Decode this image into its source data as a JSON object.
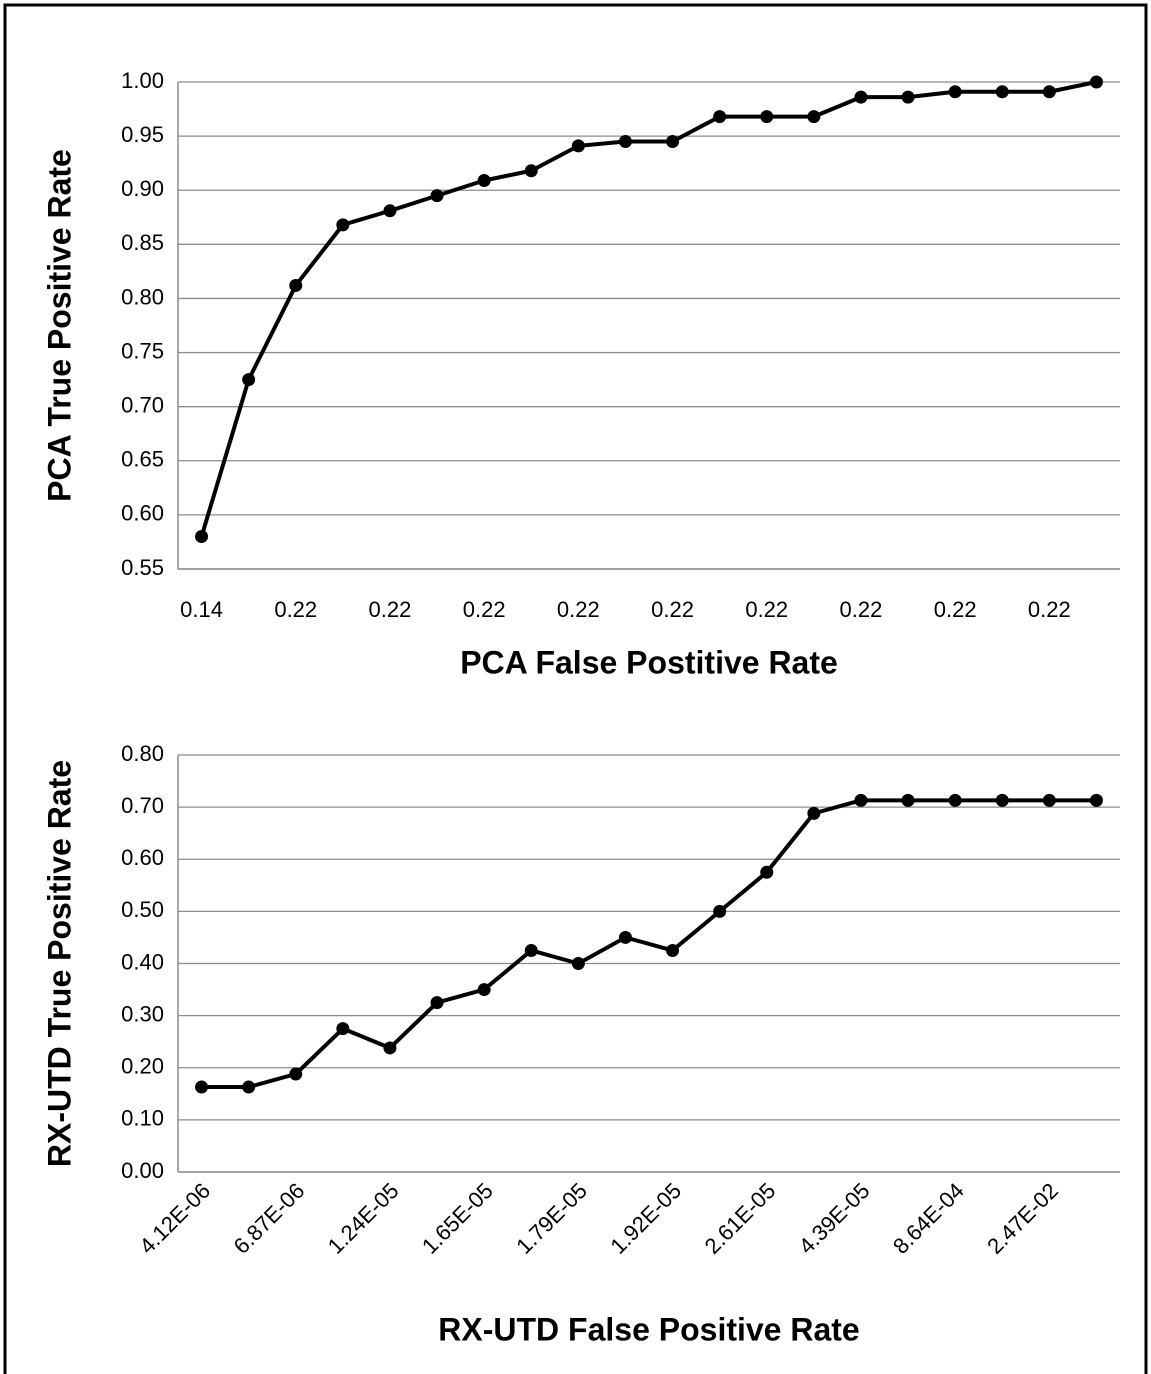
{
  "chart_data": [
    {
      "type": "line",
      "y_label": "PCA True Positive Rate",
      "x_label": "PCA False Postitive Rate",
      "categories": [
        "0.14",
        null,
        "0.22",
        null,
        "0.22",
        null,
        "0.22",
        null,
        "0.22",
        null,
        "0.22",
        null,
        "0.22",
        null,
        "0.22",
        null,
        "0.22",
        null,
        "0.22",
        null
      ],
      "series": [
        {
          "color": "#000000",
          "values": [
            0.58,
            0.725,
            0.812,
            0.868,
            0.881,
            0.895,
            0.909,
            0.918,
            0.941,
            0.945,
            0.945,
            0.968,
            0.968,
            0.968,
            0.986,
            0.986,
            0.991,
            0.991,
            0.991,
            1.0
          ]
        }
      ],
      "ylim": [
        0.55,
        1.0
      ],
      "yticks": [
        0.55,
        {
          "value": 0.6,
          "label": "0.60"
        },
        0.65,
        {
          "value": 0.7,
          "label": "0.70"
        },
        0.75,
        {
          "value": 0.8,
          "label": "0.80"
        },
        0.85,
        {
          "value": 0.9,
          "label": "0.90"
        },
        0.95,
        {
          "value": 1.0,
          "label": "1.00"
        }
      ],
      "grid": true
    },
    {
      "type": "line",
      "y_label": "RX-UTD True Positive Rate",
      "x_label": "RX-UTD False Positive Rate",
      "categories": [
        "4.12E-06",
        null,
        "6.87E-06",
        null,
        "1.24E-05",
        null,
        "1.65E-05",
        null,
        "1.79E-05",
        null,
        "1.92E-05",
        null,
        "2.61E-05",
        null,
        "4.39E-05",
        null,
        "8.64E-04",
        null,
        "2.47E-02",
        null
      ],
      "series": [
        {
          "color": "#000000",
          "values": [
            0.163,
            0.163,
            0.188,
            0.275,
            0.238,
            0.325,
            0.35,
            0.425,
            0.4,
            0.45,
            0.425,
            0.5,
            0.575,
            0.688,
            0.713,
            0.713,
            0.713,
            0.713,
            0.713,
            0.713
          ]
        }
      ],
      "ylim": [
        0.0,
        0.8
      ],
      "yticks": [
        {
          "value": 0.0,
          "label": "0.00"
        },
        {
          "value": 0.1,
          "label": "0.10"
        },
        {
          "value": 0.2,
          "label": "0.20"
        },
        {
          "value": 0.3,
          "label": "0.30"
        },
        {
          "value": 0.4,
          "label": "0.40"
        },
        {
          "value": 0.5,
          "label": "0.50"
        },
        {
          "value": 0.6,
          "label": "0.60"
        },
        {
          "value": 0.7,
          "label": "0.70"
        },
        {
          "value": 0.8,
          "label": "0.80"
        }
      ],
      "grid": true,
      "rotate_x_labels": true
    }
  ]
}
